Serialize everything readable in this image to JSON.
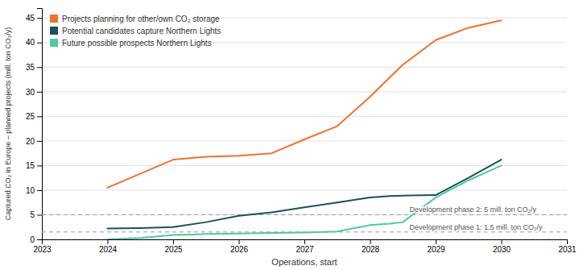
{
  "chart_data": {
    "type": "line",
    "xlabel": "Operations, start",
    "ylabel": "Captured CO₂ in Europe – planned projects (mill. ton CO₂/y)",
    "xlim": [
      2023,
      2031
    ],
    "ylim": [
      0,
      47
    ],
    "xticks": [
      2023,
      2024,
      2025,
      2026,
      2027,
      2028,
      2029,
      2030,
      2031
    ],
    "yticks": [
      0,
      5,
      10,
      15,
      20,
      25,
      30,
      35,
      40,
      45
    ],
    "grid": true,
    "legend": "upper left",
    "series": [
      {
        "name": "Projects planning for other/own CO₂ storage",
        "color": "#F07030",
        "x": [
          2024,
          2025,
          2025.5,
          2026,
          2026.5,
          2027,
          2027.5,
          2028,
          2028.5,
          2029,
          2029.5,
          2030
        ],
        "values": [
          10.5,
          16.2,
          16.8,
          17.0,
          17.5,
          20.3,
          23.0,
          29.0,
          35.5,
          40.5,
          43.0,
          44.5
        ]
      },
      {
        "name": "Potential candidates capture Northern Lights",
        "color": "#1B5060",
        "x": [
          2024,
          2024.5,
          2025,
          2025.5,
          2026,
          2026.5,
          2027,
          2027.5,
          2028,
          2028.3,
          2028.5,
          2029,
          2029.5,
          2030
        ],
        "values": [
          2.2,
          2.3,
          2.5,
          3.5,
          4.8,
          5.5,
          6.5,
          7.5,
          8.5,
          8.8,
          8.9,
          9.0,
          12.5,
          16.2
        ]
      },
      {
        "name": "Future possible prospects Northern Lights",
        "color": "#50C8A0",
        "x": [
          2024,
          2024.5,
          2025,
          2025.3,
          2025.5,
          2026,
          2026.5,
          2027,
          2027.5,
          2028,
          2028.3,
          2028.5,
          2029,
          2029.5,
          2030
        ],
        "values": [
          0.0,
          0.3,
          0.9,
          1.0,
          1.1,
          1.2,
          1.3,
          1.4,
          1.6,
          2.9,
          3.2,
          3.5,
          8.5,
          12.0,
          15.0
        ]
      }
    ],
    "annotations": [
      {
        "y": 5.0,
        "label": "Development phase 2: 5 mill. ton CO₂/y",
        "color": "#999999"
      },
      {
        "y": 1.5,
        "label": "Development phase 1:  1,5 mill. ton CO₂/y",
        "color": "#999999"
      }
    ]
  }
}
